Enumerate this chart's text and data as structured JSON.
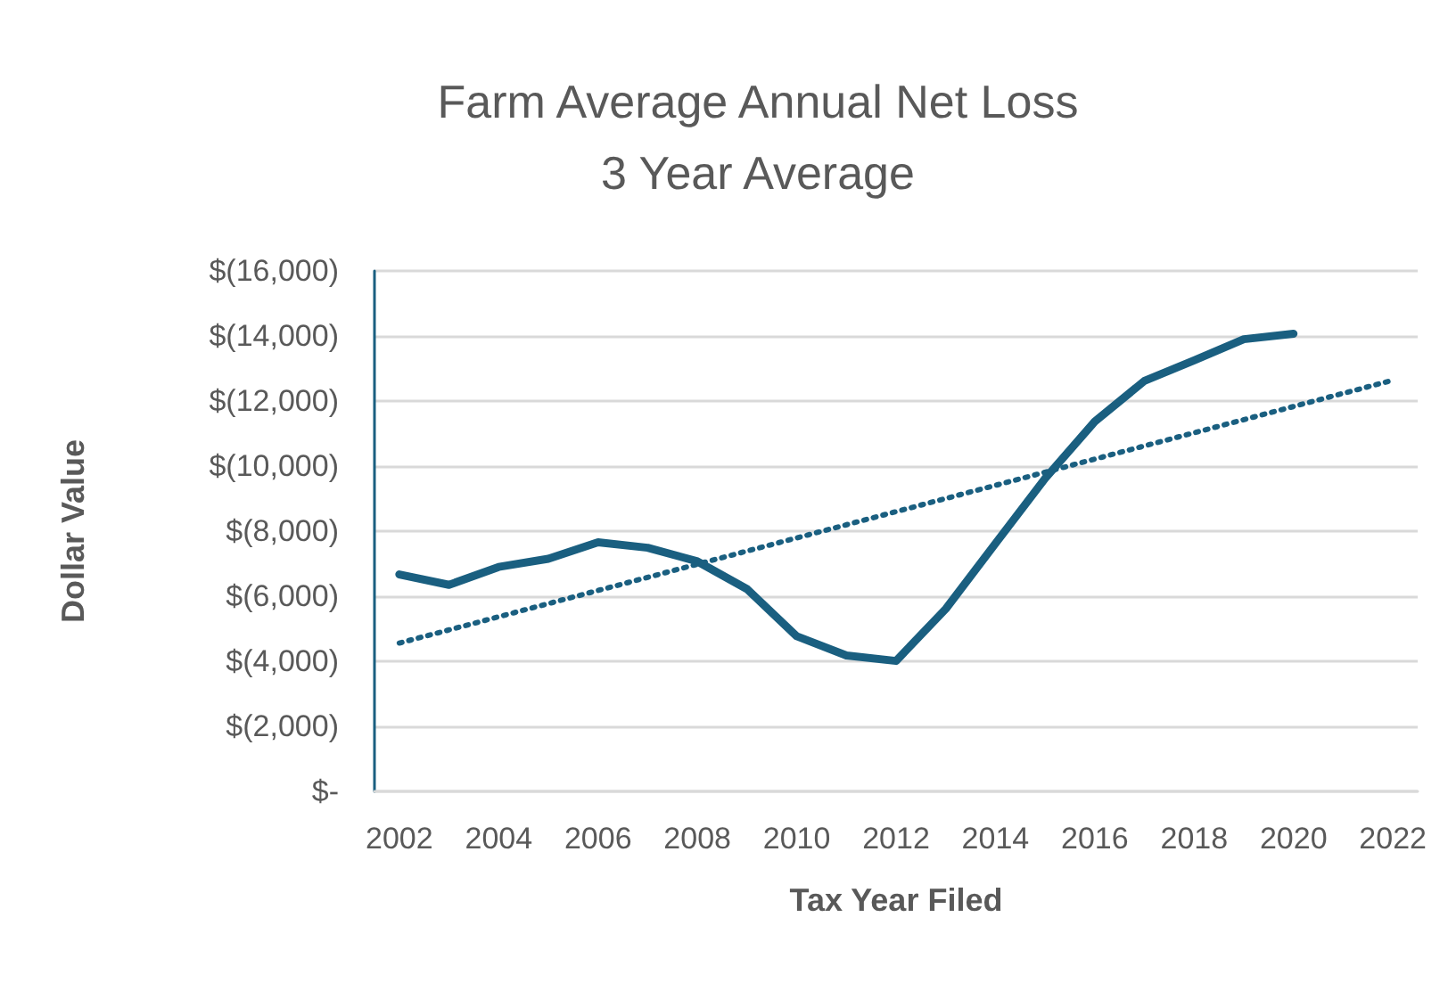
{
  "chart_data": {
    "type": "line",
    "title": "Farm Average Annual Net Loss",
    "subtitle": "3 Year Average",
    "xlabel": "Tax Year Filed",
    "ylabel": "Dollar Value",
    "series": [
      {
        "color": "#1a5f80",
        "line_style": "solid",
        "x": [
          2002,
          2003,
          2004,
          2005,
          2006,
          2007,
          2008,
          2009,
          2010,
          2011,
          2012,
          2013,
          2014,
          2015,
          2016,
          2017,
          2018,
          2019,
          2020
        ],
        "values": [
          -6670,
          -6350,
          -6900,
          -7150,
          -7660,
          -7490,
          -7070,
          -6220,
          -4770,
          -4180,
          -4010,
          -5610,
          -7620,
          -9620,
          -11370,
          -12620,
          -13250,
          -13900,
          -14070
        ]
      },
      {
        "color": "#1a5f80",
        "line_style": "dotted",
        "x": [
          2002,
          2022
        ],
        "values": [
          -4560,
          -12640
        ]
      }
    ],
    "xlim": [
      2001.5,
      2022.5
    ],
    "xticks": [
      2002,
      2004,
      2006,
      2008,
      2010,
      2012,
      2014,
      2016,
      2018,
      2020,
      2022
    ],
    "ylim": [
      0,
      -16000
    ],
    "yticks": [
      {
        "value": -16000,
        "label": "$(16,000)"
      },
      {
        "value": -14000,
        "label": "$(14,000)"
      },
      {
        "value": -12000,
        "label": "$(12,000)"
      },
      {
        "value": -10000,
        "label": "$(10,000)"
      },
      {
        "value": -8000,
        "label": "$(8,000)"
      },
      {
        "value": -6000,
        "label": "$(6,000)"
      },
      {
        "value": -4000,
        "label": "$(4,000)"
      },
      {
        "value": -2000,
        "label": "$(2,000)"
      },
      {
        "value": 0,
        "label": "$-"
      }
    ],
    "grid": "y",
    "marker": "none"
  }
}
